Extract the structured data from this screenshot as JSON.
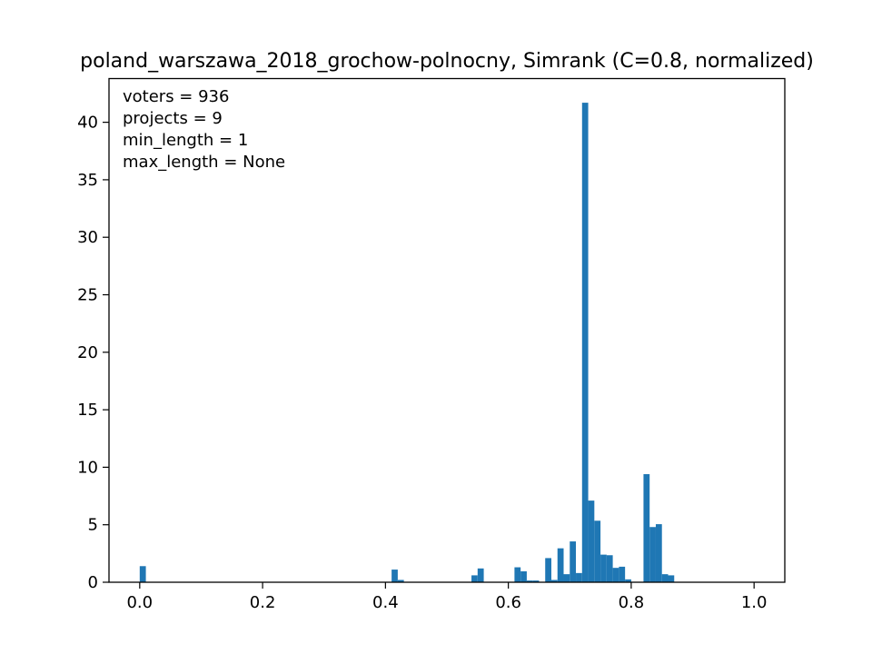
{
  "chart_data": {
    "type": "bar",
    "title": "poland_warszawa_2018_grochow-polnocny, Simrank (C=0.8, normalized)",
    "xlabel": "",
    "ylabel": "",
    "xlim": [
      -0.05,
      1.05
    ],
    "ylim": [
      0,
      43.8
    ],
    "bin_width": 0.01,
    "grid": false,
    "bar_color": "#1f77b4",
    "annotations": [
      "voters = 936",
      "projects = 9",
      "min_length = 1",
      "max_length = None"
    ],
    "xticks": [
      {
        "value": 0.0,
        "label": "0.0"
      },
      {
        "value": 0.2,
        "label": "0.2"
      },
      {
        "value": 0.4,
        "label": "0.4"
      },
      {
        "value": 0.6,
        "label": "0.6"
      },
      {
        "value": 0.8,
        "label": "0.8"
      },
      {
        "value": 1.0,
        "label": "1.0"
      }
    ],
    "yticks": [
      {
        "value": 0,
        "label": "0"
      },
      {
        "value": 5,
        "label": "5"
      },
      {
        "value": 10,
        "label": "10"
      },
      {
        "value": 15,
        "label": "15"
      },
      {
        "value": 20,
        "label": "20"
      },
      {
        "value": 25,
        "label": "25"
      },
      {
        "value": 30,
        "label": "30"
      },
      {
        "value": 35,
        "label": "35"
      },
      {
        "value": 40,
        "label": "40"
      }
    ],
    "bins": [
      {
        "x0": 0.0,
        "value": 1.4
      },
      {
        "x0": 0.41,
        "value": 1.1
      },
      {
        "x0": 0.42,
        "value": 0.2
      },
      {
        "x0": 0.54,
        "value": 0.6
      },
      {
        "x0": 0.55,
        "value": 1.2
      },
      {
        "x0": 0.61,
        "value": 1.3
      },
      {
        "x0": 0.62,
        "value": 0.95
      },
      {
        "x0": 0.63,
        "value": 0.15
      },
      {
        "x0": 0.64,
        "value": 0.15
      },
      {
        "x0": 0.66,
        "value": 2.1
      },
      {
        "x0": 0.67,
        "value": 0.2
      },
      {
        "x0": 0.68,
        "value": 2.95
      },
      {
        "x0": 0.69,
        "value": 0.7
      },
      {
        "x0": 0.7,
        "value": 3.55
      },
      {
        "x0": 0.71,
        "value": 0.8
      },
      {
        "x0": 0.72,
        "value": 41.7
      },
      {
        "x0": 0.73,
        "value": 7.1
      },
      {
        "x0": 0.74,
        "value": 5.35
      },
      {
        "x0": 0.75,
        "value": 2.4
      },
      {
        "x0": 0.76,
        "value": 2.35
      },
      {
        "x0": 0.77,
        "value": 1.25
      },
      {
        "x0": 0.78,
        "value": 1.35
      },
      {
        "x0": 0.79,
        "value": 0.25
      },
      {
        "x0": 0.82,
        "value": 9.4
      },
      {
        "x0": 0.83,
        "value": 4.8
      },
      {
        "x0": 0.84,
        "value": 5.05
      },
      {
        "x0": 0.85,
        "value": 0.7
      },
      {
        "x0": 0.86,
        "value": 0.6
      }
    ]
  }
}
